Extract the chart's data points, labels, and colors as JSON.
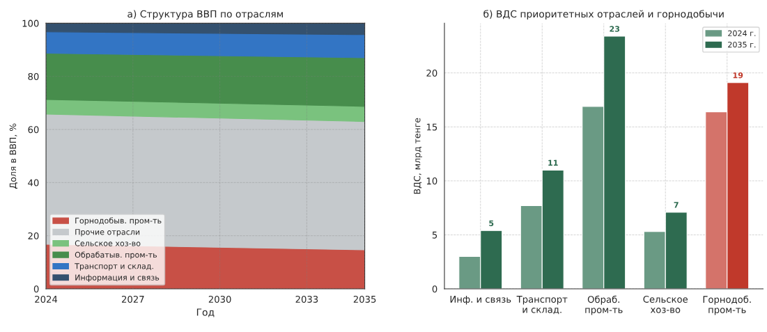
{
  "chart_data": [
    {
      "type": "area",
      "stacked": true,
      "title": "а) Структура ВВП по отраслям",
      "xlabel": "Год",
      "ylabel": "Доля в ВВП, %",
      "x": [
        2024,
        2035
      ],
      "xlim": [
        2024,
        2035
      ],
      "xticks": [
        2024,
        2027,
        2030,
        2033,
        2035
      ],
      "ylim": [
        0,
        100
      ],
      "yticks": [
        0,
        20,
        40,
        60,
        80,
        100
      ],
      "grid": true,
      "legend": "bottom left",
      "series": [
        {
          "name": "Горнодобыв. пром-ть",
          "color": "#c85046",
          "values": [
            16.8,
            14.7
          ]
        },
        {
          "name": "Прочие отрасли",
          "color": "#c5c9cc",
          "values": [
            49.0,
            48.3
          ]
        },
        {
          "name": "Сельское хоз-во",
          "color": "#7ac27e",
          "values": [
            5.5,
            5.7
          ]
        },
        {
          "name": "Обрабатыв. пром-ть",
          "color": "#478d4c",
          "values": [
            17.4,
            18.3
          ]
        },
        {
          "name": "Транспорт и склад.",
          "color": "#3375c4",
          "values": [
            8.1,
            8.7
          ]
        },
        {
          "name": "Информация и связь",
          "color": "#34516f",
          "values": [
            3.2,
            4.3
          ]
        }
      ]
    },
    {
      "type": "bar",
      "title": "б) ВДС приоритетных отраслей и горнодобычи",
      "ylabel": "ВДС, млрд тенге",
      "categories": [
        "Инф. и связь",
        "Транспорт\nи склад.",
        "Обраб.\nпром-ть",
        "Сельское\nхоз-во",
        "Горнодоб.\nпром-ть"
      ],
      "ylim": [
        0,
        24.6
      ],
      "yticks": [
        0,
        5,
        10,
        15,
        20
      ],
      "grid": true,
      "legend": "top right",
      "series": [
        {
          "name": "2024 г.",
          "color": "#6a9a84",
          "colors": [
            "#6a9a84",
            "#6a9a84",
            "#6a9a84",
            "#6a9a84",
            "#d4736a"
          ],
          "values": [
            3.0,
            7.7,
            16.9,
            5.3,
            16.4
          ]
        },
        {
          "name": "2035 г.",
          "color": "#2e6b50",
          "colors": [
            "#2e6b50",
            "#2e6b50",
            "#2e6b50",
            "#2e6b50",
            "#c0392b"
          ],
          "values": [
            5.4,
            11.0,
            23.4,
            7.1,
            19.1
          ],
          "value_labels": [
            "5",
            "11",
            "23",
            "7",
            "19"
          ]
        }
      ]
    }
  ]
}
